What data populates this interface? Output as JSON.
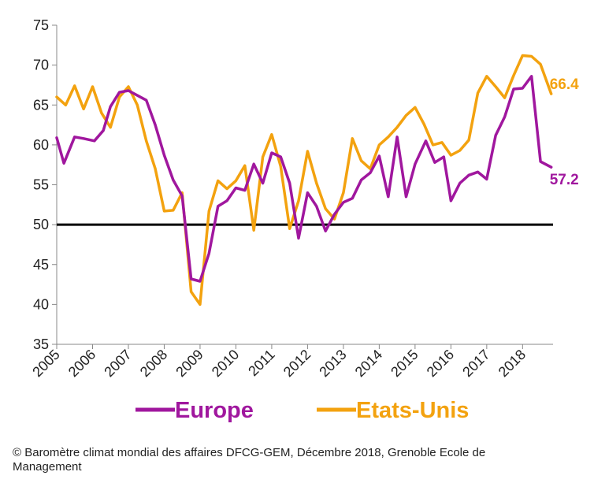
{
  "chart_data": {
    "type": "line",
    "ylim": [
      35,
      75
    ],
    "yticks": [
      "35",
      "40",
      "45",
      "50",
      "55",
      "60",
      "65",
      "70",
      "75"
    ],
    "xlim": [
      2005,
      2018.85
    ],
    "xtick_labels": [
      "2005",
      "2006",
      "2007",
      "2008",
      "2009",
      "2010",
      "2011",
      "2012",
      "2013",
      "2014",
      "2015",
      "2016",
      "2017",
      "2018"
    ],
    "reference_line": {
      "y": 50,
      "color": "#000000"
    },
    "grid": false,
    "legend_position": "bottom",
    "series": [
      {
        "name": "Europe",
        "color": "#a0179e",
        "end_label": "57.2",
        "points": [
          [
            2005.0,
            60.9
          ],
          [
            2005.2,
            57.7
          ],
          [
            2005.5,
            61.0
          ],
          [
            2005.75,
            60.8
          ],
          [
            2006.05,
            60.5
          ],
          [
            2006.3,
            61.8
          ],
          [
            2006.5,
            64.8
          ],
          [
            2006.75,
            66.6
          ],
          [
            2007.0,
            66.8
          ],
          [
            2007.25,
            66.2
          ],
          [
            2007.5,
            65.6
          ],
          [
            2007.75,
            62.5
          ],
          [
            2008.0,
            58.7
          ],
          [
            2008.25,
            55.6
          ],
          [
            2008.5,
            53.6
          ],
          [
            2008.75,
            43.2
          ],
          [
            2009.0,
            42.9
          ],
          [
            2009.25,
            46.4
          ],
          [
            2009.5,
            52.3
          ],
          [
            2009.75,
            53.0
          ],
          [
            2010.0,
            54.6
          ],
          [
            2010.25,
            54.3
          ],
          [
            2010.5,
            57.6
          ],
          [
            2010.75,
            55.2
          ],
          [
            2011.0,
            59.0
          ],
          [
            2011.25,
            58.5
          ],
          [
            2011.5,
            55.2
          ],
          [
            2011.75,
            48.3
          ],
          [
            2012.0,
            54.0
          ],
          [
            2012.25,
            52.3
          ],
          [
            2012.5,
            49.2
          ],
          [
            2012.75,
            51.3
          ],
          [
            2013.0,
            52.8
          ],
          [
            2013.25,
            53.3
          ],
          [
            2013.5,
            55.6
          ],
          [
            2013.75,
            56.5
          ],
          [
            2014.0,
            58.6
          ],
          [
            2014.25,
            53.5
          ],
          [
            2014.5,
            61.0
          ],
          [
            2014.75,
            53.5
          ],
          [
            2015.0,
            57.6
          ],
          [
            2015.3,
            60.5
          ],
          [
            2015.55,
            57.8
          ],
          [
            2015.8,
            58.5
          ],
          [
            2016.0,
            53.0
          ],
          [
            2016.25,
            55.2
          ],
          [
            2016.5,
            56.2
          ],
          [
            2016.75,
            56.6
          ],
          [
            2017.0,
            55.7
          ],
          [
            2017.25,
            61.2
          ],
          [
            2017.5,
            63.5
          ],
          [
            2017.75,
            67.0
          ],
          [
            2018.0,
            67.1
          ],
          [
            2018.25,
            68.6
          ],
          [
            2018.5,
            57.9
          ],
          [
            2018.8,
            57.2
          ]
        ]
      },
      {
        "name": "Etats-Unis",
        "color": "#f3a20f",
        "end_label": "66.4",
        "points": [
          [
            2005.0,
            66.0
          ],
          [
            2005.25,
            65.0
          ],
          [
            2005.5,
            67.4
          ],
          [
            2005.75,
            64.5
          ],
          [
            2006.0,
            67.3
          ],
          [
            2006.25,
            64.0
          ],
          [
            2006.5,
            62.2
          ],
          [
            2006.75,
            66.0
          ],
          [
            2007.0,
            67.3
          ],
          [
            2007.25,
            65.0
          ],
          [
            2007.5,
            60.5
          ],
          [
            2007.75,
            57.0
          ],
          [
            2008.0,
            51.7
          ],
          [
            2008.25,
            51.8
          ],
          [
            2008.5,
            54.0
          ],
          [
            2008.75,
            41.6
          ],
          [
            2009.0,
            40.0
          ],
          [
            2009.25,
            51.7
          ],
          [
            2009.5,
            55.5
          ],
          [
            2009.75,
            54.5
          ],
          [
            2010.0,
            55.5
          ],
          [
            2010.25,
            57.4
          ],
          [
            2010.5,
            49.3
          ],
          [
            2010.75,
            58.5
          ],
          [
            2011.0,
            61.3
          ],
          [
            2011.25,
            57.3
          ],
          [
            2011.5,
            49.5
          ],
          [
            2011.75,
            53.0
          ],
          [
            2012.0,
            59.2
          ],
          [
            2012.25,
            55.2
          ],
          [
            2012.5,
            52.0
          ],
          [
            2012.75,
            50.7
          ],
          [
            2013.0,
            54.0
          ],
          [
            2013.25,
            60.8
          ],
          [
            2013.5,
            58.0
          ],
          [
            2013.75,
            57.0
          ],
          [
            2014.0,
            60.0
          ],
          [
            2014.25,
            61.0
          ],
          [
            2014.5,
            62.2
          ],
          [
            2014.75,
            63.7
          ],
          [
            2015.0,
            64.7
          ],
          [
            2015.25,
            62.6
          ],
          [
            2015.5,
            60.0
          ],
          [
            2015.75,
            60.3
          ],
          [
            2016.0,
            58.7
          ],
          [
            2016.25,
            59.3
          ],
          [
            2016.5,
            60.6
          ],
          [
            2016.75,
            66.5
          ],
          [
            2017.0,
            68.6
          ],
          [
            2017.25,
            67.3
          ],
          [
            2017.5,
            65.9
          ],
          [
            2017.75,
            68.7
          ],
          [
            2018.0,
            71.2
          ],
          [
            2018.25,
            71.1
          ],
          [
            2018.5,
            70.1
          ],
          [
            2018.8,
            66.4
          ]
        ]
      }
    ]
  },
  "footer": {
    "line1": "© Baromètre climat mondial des affaires DFCG-GEM,  Décembre 2018, Grenoble Ecole de",
    "line2": "Management"
  }
}
